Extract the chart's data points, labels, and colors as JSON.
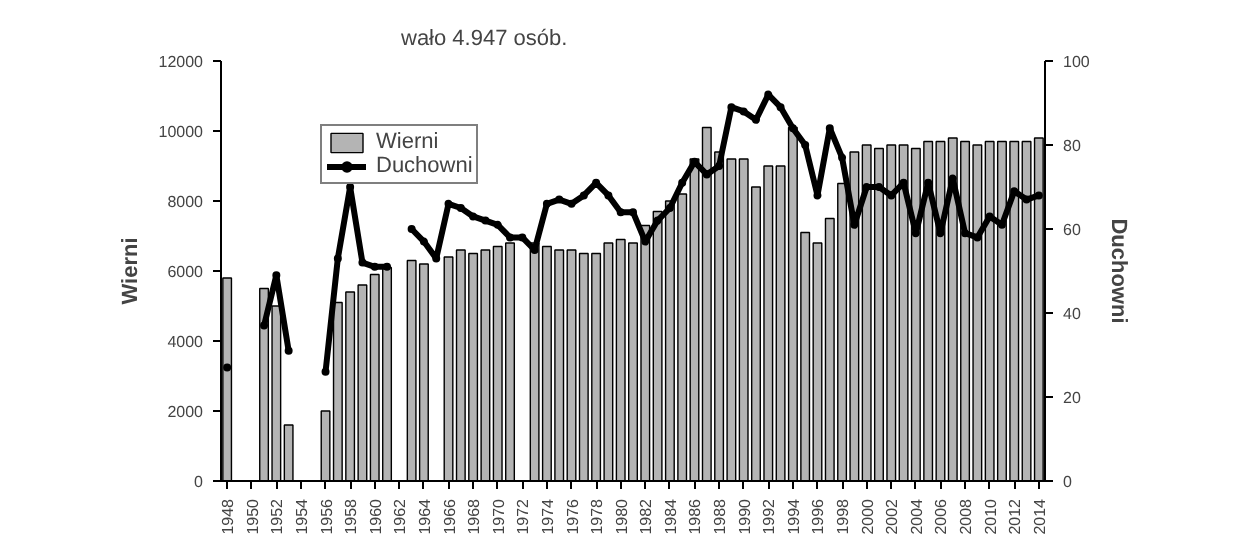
{
  "chart_data": {
    "type": "bar",
    "annotations": [
      "wało 4.947 osób."
    ],
    "ylabel": "Wierni",
    "y2label": "Duchowni",
    "x": [
      1948,
      1949,
      1950,
      1951,
      1952,
      1953,
      1954,
      1955,
      1956,
      1957,
      1958,
      1959,
      1960,
      1961,
      1962,
      1963,
      1964,
      1965,
      1966,
      1967,
      1968,
      1969,
      1970,
      1971,
      1972,
      1973,
      1974,
      1975,
      1976,
      1977,
      1978,
      1979,
      1980,
      1981,
      1982,
      1983,
      1984,
      1985,
      1986,
      1987,
      1988,
      1989,
      1990,
      1991,
      1992,
      1993,
      1994,
      1995,
      1996,
      1997,
      1998,
      1999,
      2000,
      2001,
      2002,
      2003,
      2004,
      2005,
      2006,
      2007,
      2008,
      2009,
      2010,
      2011,
      2012,
      2013,
      2014
    ],
    "series": [
      {
        "name": "Wierni",
        "color": "#b4b4b4",
        "values": [
          5800,
          null,
          null,
          5500,
          5000,
          1600,
          null,
          null,
          2000,
          5100,
          5400,
          5600,
          5900,
          6100,
          null,
          6300,
          6200,
          null,
          6400,
          6600,
          6500,
          6600,
          6700,
          6800,
          null,
          6800,
          6700,
          6600,
          6600,
          6500,
          6500,
          6800,
          6900,
          6800,
          7300,
          7700,
          8000,
          8200,
          9200,
          10100,
          9400,
          9200,
          9200,
          8400,
          9000,
          9000,
          10100,
          7100,
          6800,
          7500,
          8500,
          9400,
          9600,
          9500,
          9600,
          9600,
          9500,
          9700,
          9700,
          9800,
          9700,
          9600,
          9700,
          9700,
          9700,
          9700,
          9800
        ]
      },
      {
        "name": "Duchowni",
        "type": "line",
        "axis": "y2",
        "color": "#000000",
        "marker": "circle",
        "values": [
          27,
          null,
          null,
          37,
          49,
          31,
          null,
          null,
          26,
          53,
          70,
          52,
          51,
          51,
          null,
          60,
          57,
          53,
          66,
          65,
          63,
          62,
          61,
          58,
          58,
          55,
          66,
          67,
          66,
          68,
          71,
          68,
          64,
          64,
          57,
          62,
          65,
          71,
          76,
          73,
          75,
          89,
          88,
          86,
          92,
          89,
          84,
          80,
          68,
          84,
          77,
          61,
          70,
          70,
          68,
          71,
          59,
          71,
          59,
          72,
          59,
          58,
          63,
          61,
          69,
          67,
          68
        ]
      }
    ],
    "xlim": [
      1947.5,
      2014.5
    ],
    "xticks": [
      1948,
      1950,
      1952,
      1954,
      1956,
      1958,
      1960,
      1962,
      1964,
      1966,
      1968,
      1970,
      1972,
      1974,
      1976,
      1978,
      1980,
      1982,
      1984,
      1986,
      1988,
      1990,
      1992,
      1994,
      1996,
      1998,
      2000,
      2002,
      2004,
      2006,
      2008,
      2010,
      2012,
      2014
    ],
    "ylim": [
      0,
      12000
    ],
    "yticks": [
      0,
      2000,
      4000,
      6000,
      8000,
      10000,
      12000
    ],
    "y2lim": [
      0,
      100
    ],
    "y2ticks": [
      0,
      20,
      40,
      60,
      80,
      100
    ],
    "grid": false,
    "legend": "top left"
  }
}
